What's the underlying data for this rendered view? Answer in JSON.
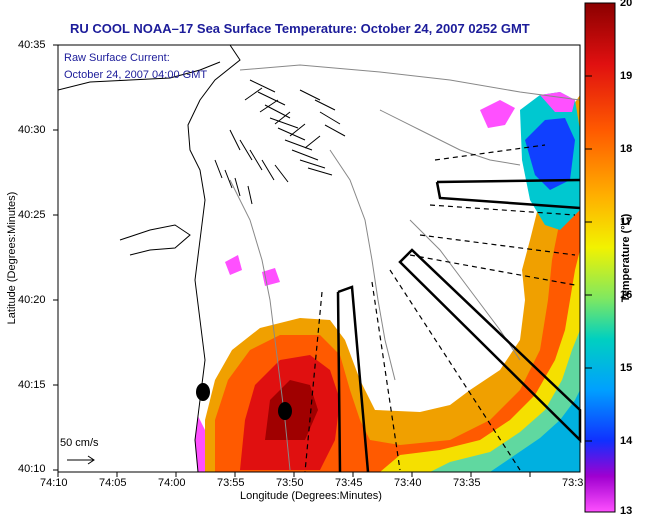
{
  "title": "RU COOL  NOAA–17  Sea Surface Temperature:  October 24, 2007 0252 GMT",
  "current_note": {
    "line1": "Raw Surface Current:",
    "line2": "October 24, 2007 04:00 GMT"
  },
  "scale_label": "50 cm/s",
  "axes": {
    "xlabel": "Longitude (Degrees:Minutes)",
    "ylabel": "Latitude (Degrees:Minutes)",
    "x_ticks": [
      "74:10",
      "74:05",
      "74:00",
      "73:55",
      "73:50",
      "73:45",
      "73:40",
      "73:35",
      "73:3"
    ],
    "y_ticks": [
      "40:35",
      "40:30",
      "40:25",
      "40:20",
      "40:15",
      "40:10"
    ]
  },
  "colorbar": {
    "label": "Temperature (°C)",
    "ticks": [
      "20",
      "19",
      "18",
      "17",
      "16",
      "15",
      "14",
      "13"
    ],
    "min": 13,
    "max": 20
  },
  "colors": {
    "title": "#1c1c9a",
    "land": "#ffffff",
    "frame": "#000000"
  }
}
